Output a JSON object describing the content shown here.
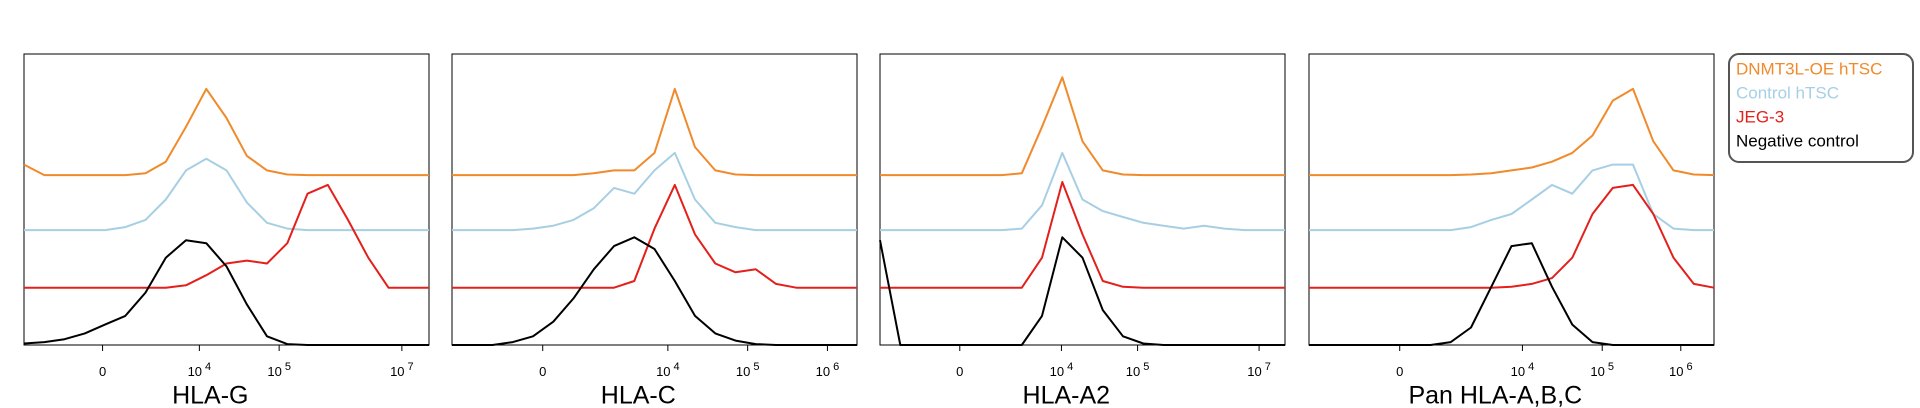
{
  "chart_data": [
    {
      "type": "line",
      "xlabel": "HLA-G",
      "x": [
        0,
        5,
        10,
        15,
        20,
        25,
        30,
        35,
        40,
        45,
        50,
        55,
        60,
        65,
        70,
        75,
        80,
        85,
        90,
        95,
        100
      ],
      "xlim": [
        0,
        100
      ],
      "ylim": [
        0,
        100
      ],
      "xticks": [
        {
          "value": 19.4,
          "label": "0"
        },
        {
          "value": 43.3,
          "label": "10",
          "exponent": "4"
        },
        {
          "value": 63,
          "label": "10",
          "exponent": "5"
        },
        {
          "value": 93.3,
          "label": "10",
          "exponent": "7"
        }
      ],
      "legend": "right",
      "series": [
        {
          "name": "DNMT3L-OE hTSC",
          "color": "#f08a2b",
          "values": [
            62,
            58.4,
            58.4,
            58.4,
            58.4,
            58.4,
            59,
            63,
            75,
            88,
            78,
            65,
            60,
            58.6,
            58.4,
            58.4,
            58.4,
            58.4,
            58.4,
            58.4,
            58.4
          ]
        },
        {
          "name": "Control hTSC",
          "color": "#a7cfe4",
          "values": [
            39.5,
            39.5,
            39.5,
            39.5,
            39.5,
            40.5,
            43,
            50,
            60,
            64,
            60,
            49,
            42,
            40,
            39.5,
            39.5,
            39.5,
            39.5,
            39.5,
            39.5,
            39.5
          ]
        },
        {
          "name": "JEG-3",
          "color": "#e3201b",
          "values": [
            19.7,
            19.7,
            19.7,
            19.7,
            19.7,
            19.7,
            19.7,
            19.7,
            20.5,
            24,
            28,
            29,
            28,
            35,
            52,
            55,
            43,
            30,
            19.7,
            19.7,
            19.7
          ]
        },
        {
          "name": "Negative control",
          "color": "#000000",
          "values": [
            0.5,
            1,
            2,
            4,
            7,
            10,
            18,
            30,
            36,
            35,
            27,
            14,
            3,
            0.3,
            0,
            0,
            0,
            0,
            0,
            0,
            0
          ]
        }
      ]
    },
    {
      "type": "line",
      "xlabel": "HLA-C",
      "x": [
        0,
        5,
        10,
        15,
        20,
        25,
        30,
        35,
        40,
        45,
        50,
        55,
        60,
        65,
        70,
        75,
        80,
        85,
        90,
        95,
        100
      ],
      "xlim": [
        0,
        100
      ],
      "ylim": [
        0,
        100
      ],
      "xticks": [
        {
          "value": 22.4,
          "label": "0"
        },
        {
          "value": 53.3,
          "label": "10",
          "exponent": "4"
        },
        {
          "value": 73,
          "label": "10",
          "exponent": "5"
        },
        {
          "value": 92.7,
          "label": "10",
          "exponent": "6"
        }
      ],
      "series": [
        {
          "color": "#f08a2b",
          "values": [
            58.4,
            58.4,
            58.4,
            58.4,
            58.4,
            58.4,
            58.4,
            59,
            60,
            60,
            66,
            88,
            68,
            60,
            58.6,
            58.4,
            58.4,
            58.4,
            58.4,
            58.4,
            58.4
          ]
        },
        {
          "color": "#a7cfe4",
          "values": [
            39.5,
            39.5,
            39.5,
            39.5,
            40,
            41,
            43,
            47,
            54,
            52,
            60,
            66,
            50,
            42,
            40.5,
            39.5,
            39.5,
            39.5,
            39.5,
            39.5,
            39.5
          ]
        },
        {
          "color": "#e3201b",
          "values": [
            19.7,
            19.7,
            19.7,
            19.7,
            19.7,
            19.7,
            19.7,
            19.7,
            19.7,
            22,
            40,
            55,
            38,
            28,
            25,
            26,
            21,
            19.7,
            19.7,
            19.7,
            19.7
          ]
        },
        {
          "color": "#000000",
          "values": [
            0,
            0,
            0,
            1,
            3,
            8,
            16,
            26,
            34,
            37,
            33,
            22,
            10,
            4,
            1.5,
            0.3,
            0,
            0,
            0,
            0,
            0
          ]
        }
      ]
    },
    {
      "type": "line",
      "xlabel": "HLA-A2",
      "x": [
        0,
        5,
        10,
        15,
        20,
        25,
        30,
        35,
        40,
        45,
        50,
        55,
        60,
        65,
        70,
        75,
        80,
        85,
        90,
        95,
        100
      ],
      "xlim": [
        0,
        100
      ],
      "ylim": [
        0,
        100
      ],
      "xticks": [
        {
          "value": 19.7,
          "label": "0"
        },
        {
          "value": 44.8,
          "label": "10",
          "exponent": "4"
        },
        {
          "value": 63.6,
          "label": "10",
          "exponent": "5"
        },
        {
          "value": 93.6,
          "label": "10",
          "exponent": "7"
        }
      ],
      "series": [
        {
          "color": "#f08a2b",
          "values": [
            58.4,
            58.4,
            58.4,
            58.4,
            58.4,
            58.4,
            58.4,
            59,
            75,
            92,
            70,
            60,
            58.6,
            58.4,
            58.4,
            58.4,
            58.4,
            58.4,
            58.4,
            58.4,
            58.4
          ]
        },
        {
          "color": "#a7cfe4",
          "values": [
            39.5,
            39.5,
            39.5,
            39.5,
            39.5,
            39.5,
            39.5,
            40,
            48,
            66,
            50,
            46,
            44,
            42,
            41,
            40,
            41,
            40,
            39.5,
            39.5,
            39.5
          ]
        },
        {
          "color": "#e3201b",
          "values": [
            19.7,
            19.7,
            19.7,
            19.7,
            19.7,
            19.7,
            19.7,
            19.7,
            30,
            56,
            38,
            22,
            20,
            19.7,
            19.7,
            19.7,
            19.7,
            19.7,
            19.7,
            19.7,
            19.7
          ]
        },
        {
          "color": "#000000",
          "values": [
            36,
            0,
            0,
            0,
            0,
            0,
            0,
            0,
            10,
            37,
            30,
            12,
            3,
            0.5,
            0,
            0,
            0,
            0,
            0,
            0,
            0
          ]
        }
      ]
    },
    {
      "type": "line",
      "xlabel": "Pan HLA-A,B,C",
      "x": [
        0,
        5,
        10,
        15,
        20,
        25,
        30,
        35,
        40,
        45,
        50,
        55,
        60,
        65,
        70,
        75,
        80,
        85,
        90,
        95,
        100
      ],
      "xlim": [
        0,
        100
      ],
      "ylim": [
        0,
        100
      ],
      "xticks": [
        {
          "value": 22.4,
          "label": "0"
        },
        {
          "value": 52.7,
          "label": "10",
          "exponent": "4"
        },
        {
          "value": 72.4,
          "label": "10",
          "exponent": "5"
        },
        {
          "value": 91.8,
          "label": "10",
          "exponent": "6"
        }
      ],
      "series": [
        {
          "color": "#f08a2b",
          "values": [
            58.4,
            58.4,
            58.4,
            58.4,
            58.4,
            58.4,
            58.4,
            58.4,
            58.6,
            59,
            60,
            61,
            63,
            66,
            72,
            84,
            88,
            70,
            60,
            58.6,
            58.4
          ]
        },
        {
          "color": "#a7cfe4",
          "values": [
            39.5,
            39.5,
            39.5,
            39.5,
            39.5,
            39.5,
            39.5,
            39.5,
            40.5,
            43,
            45,
            50,
            55,
            52,
            60,
            62,
            62,
            45,
            40,
            39.5,
            39.5
          ]
        },
        {
          "color": "#e3201b",
          "values": [
            19.7,
            19.7,
            19.7,
            19.7,
            19.7,
            19.7,
            19.7,
            19.7,
            19.7,
            19.7,
            20,
            21,
            23,
            30,
            45,
            54,
            55,
            45,
            30,
            21,
            19.7
          ]
        },
        {
          "color": "#000000",
          "values": [
            0,
            0,
            0,
            0,
            0,
            0,
            0,
            1,
            6,
            20,
            34,
            35,
            20,
            7,
            1,
            0,
            0,
            0,
            0,
            0,
            0
          ]
        }
      ]
    }
  ]
}
